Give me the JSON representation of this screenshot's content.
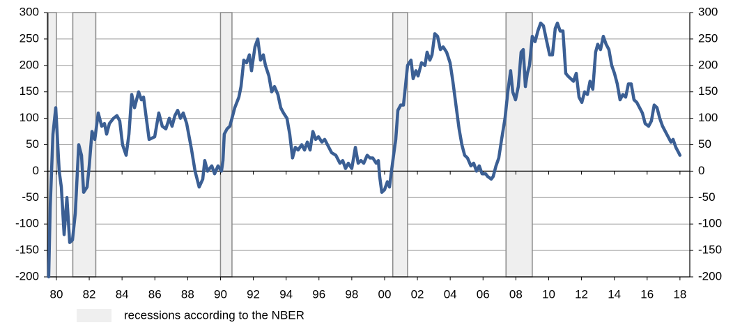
{
  "chart_data": {
    "type": "line",
    "color": "#3b5f94",
    "recession_color": "#efefef",
    "recession_legend": "recessions according to the NBER",
    "recessions": [
      [
        1980.0,
        1980.5
      ],
      [
        1981.5,
        1982.9
      ],
      [
        1990.5,
        1991.2
      ],
      [
        2001.0,
        2001.9
      ],
      [
        2007.9,
        2009.5
      ]
    ],
    "xlim": [
      1979.95,
      2019.1
    ],
    "xticks": [
      {
        "value": 1980.5,
        "label": "80"
      },
      {
        "value": 1982.5,
        "label": "82"
      },
      {
        "value": 1984.5,
        "label": "84"
      },
      {
        "value": 1986.5,
        "label": "86"
      },
      {
        "value": 1988.5,
        "label": "88"
      },
      {
        "value": 1990.5,
        "label": "90"
      },
      {
        "value": 1992.5,
        "label": "92"
      },
      {
        "value": 1994.5,
        "label": "94"
      },
      {
        "value": 1996.5,
        "label": "96"
      },
      {
        "value": 1998.5,
        "label": "98"
      },
      {
        "value": 2000.5,
        "label": "00"
      },
      {
        "value": 2002.5,
        "label": "02"
      },
      {
        "value": 2004.5,
        "label": "04"
      },
      {
        "value": 2006.5,
        "label": "06"
      },
      {
        "value": 2008.5,
        "label": "08"
      },
      {
        "value": 2010.5,
        "label": "10"
      },
      {
        "value": 2012.5,
        "label": "12"
      },
      {
        "value": 2014.5,
        "label": "14"
      },
      {
        "value": 2016.5,
        "label": "16"
      },
      {
        "value": 2018.5,
        "label": "18"
      }
    ],
    "ylim": [
      -200,
      300
    ],
    "yticks": [
      -200,
      -150,
      -100,
      -50,
      0,
      50,
      100,
      150,
      200,
      250,
      300
    ],
    "y2lim": [
      -200,
      300
    ],
    "y2ticks": [
      -200,
      -150,
      -100,
      -50,
      0,
      50,
      100,
      150,
      200,
      250,
      300
    ],
    "grid": true,
    "x": [
      1980.03,
      1980.12,
      1980.29,
      1980.46,
      1980.67,
      1980.8,
      1980.97,
      1981.14,
      1981.31,
      1981.48,
      1981.65,
      1981.86,
      1982.03,
      1982.16,
      1982.37,
      1982.5,
      1982.67,
      1982.84,
      1983.05,
      1983.26,
      1983.43,
      1983.56,
      1983.73,
      1983.98,
      1984.19,
      1984.36,
      1984.53,
      1984.75,
      1984.92,
      1985.09,
      1985.26,
      1985.51,
      1985.68,
      1985.81,
      1986.15,
      1986.49,
      1986.74,
      1986.95,
      1987.17,
      1987.38,
      1987.55,
      1987.72,
      1987.89,
      1988.06,
      1988.23,
      1988.44,
      1988.74,
      1988.95,
      1989.2,
      1989.42,
      1989.54,
      1989.71,
      1989.97,
      1990.14,
      1990.35,
      1990.56,
      1990.65,
      1990.73,
      1990.9,
      1991.07,
      1991.2,
      1991.37,
      1991.62,
      1991.75,
      1991.92,
      1992.09,
      1992.26,
      1992.39,
      1992.6,
      1992.77,
      1992.94,
      1993.11,
      1993.24,
      1993.45,
      1993.62,
      1993.79,
      1994.0,
      1994.17,
      1994.34,
      1994.55,
      1994.72,
      1994.89,
      1995.06,
      1995.23,
      1995.45,
      1995.62,
      1995.79,
      1995.96,
      1996.13,
      1996.3,
      1996.47,
      1996.68,
      1996.85,
      1997.02,
      1997.27,
      1997.53,
      1997.78,
      1997.95,
      1998.12,
      1998.29,
      1998.5,
      1998.72,
      1998.89,
      1999.06,
      1999.23,
      1999.44,
      1999.61,
      1999.78,
      1999.99,
      2000.12,
      2000.2,
      2000.33,
      2000.5,
      2000.67,
      2000.8,
      2000.92,
      2001.09,
      2001.18,
      2001.31,
      2001.48,
      2001.65,
      2001.77,
      2001.9,
      2002.11,
      2002.24,
      2002.41,
      2002.54,
      2002.75,
      2002.96,
      2003.09,
      2003.26,
      2003.39,
      2003.56,
      2003.73,
      2003.9,
      2004.07,
      2004.28,
      2004.49,
      2004.66,
      2004.87,
      2005.04,
      2005.21,
      2005.38,
      2005.55,
      2005.76,
      2005.93,
      2006.1,
      2006.27,
      2006.44,
      2006.66,
      2006.78,
      2007.0,
      2007.12,
      2007.29,
      2007.46,
      2007.63,
      2007.84,
      2008.01,
      2008.18,
      2008.31,
      2008.48,
      2008.65,
      2008.82,
      2008.95,
      2009.08,
      2009.2,
      2009.33,
      2009.5,
      2009.67,
      2009.84,
      2010.01,
      2010.18,
      2010.35,
      2010.56,
      2010.73,
      2010.9,
      2011.03,
      2011.2,
      2011.37,
      2011.54,
      2011.67,
      2011.84,
      2012.01,
      2012.18,
      2012.35,
      2012.52,
      2012.69,
      2012.86,
      2013.02,
      2013.19,
      2013.36,
      2013.49,
      2013.66,
      2013.83,
      2014.0,
      2014.17,
      2014.34,
      2014.51,
      2014.68,
      2014.85,
      2015.02,
      2015.19,
      2015.36,
      2015.53,
      2015.7,
      2015.87,
      2016.04,
      2016.21,
      2016.38,
      2016.59,
      2016.76,
      2016.93,
      2017.1,
      2017.27,
      2017.44,
      2017.61,
      2017.78,
      2017.95,
      2018.08,
      2018.25,
      2018.42,
      2018.5
    ],
    "values": [
      -200,
      -70,
      70,
      120,
      0,
      -30,
      -120,
      -50,
      -135,
      -130,
      -80,
      50,
      30,
      -40,
      -30,
      10,
      75,
      60,
      110,
      85,
      90,
      70,
      90,
      100,
      105,
      95,
      50,
      30,
      70,
      145,
      120,
      150,
      135,
      140,
      60,
      65,
      110,
      85,
      80,
      100,
      85,
      105,
      115,
      100,
      110,
      90,
      40,
      0,
      -30,
      -15,
      20,
      0,
      10,
      -5,
      10,
      0,
      20,
      70,
      80,
      85,
      100,
      120,
      140,
      160,
      210,
      205,
      220,
      190,
      235,
      250,
      210,
      220,
      200,
      180,
      150,
      160,
      145,
      120,
      110,
      100,
      70,
      25,
      45,
      40,
      50,
      40,
      55,
      40,
      75,
      60,
      65,
      55,
      60,
      50,
      35,
      30,
      15,
      20,
      5,
      15,
      5,
      45,
      15,
      20,
      15,
      30,
      25,
      25,
      15,
      20,
      -10,
      -40,
      -35,
      -20,
      -30,
      0,
      40,
      60,
      115,
      125,
      125,
      160,
      200,
      210,
      175,
      190,
      180,
      205,
      200,
      225,
      210,
      220,
      260,
      255,
      230,
      235,
      225,
      205,
      170,
      120,
      80,
      50,
      30,
      25,
      10,
      15,
      0,
      10,
      -5,
      -5,
      -10,
      -15,
      -10,
      10,
      25,
      60,
      100,
      150,
      190,
      150,
      135,
      160,
      225,
      230,
      160,
      185,
      200,
      255,
      245,
      265,
      280,
      275,
      250,
      220,
      220,
      270,
      280,
      265,
      265,
      185,
      180,
      175,
      170,
      185,
      140,
      130,
      150,
      145,
      170,
      155,
      225,
      240,
      230,
      255,
      240,
      230,
      200,
      185,
      165,
      135,
      145,
      140,
      165,
      165,
      135,
      130,
      120,
      110,
      90,
      85,
      95,
      125,
      120,
      100,
      85,
      75,
      65,
      55,
      60,
      45,
      35,
      30
    ]
  }
}
